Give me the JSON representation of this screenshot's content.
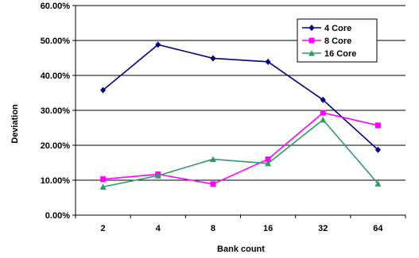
{
  "chart_data": {
    "type": "line",
    "title": "",
    "xlabel": "Bank count",
    "ylabel": "Deviation",
    "categories": [
      "2",
      "4",
      "8",
      "16",
      "32",
      "64"
    ],
    "ylim": [
      0,
      0.6
    ],
    "y_ticks": [
      "0.00%",
      "10.00%",
      "20.00%",
      "30.00%",
      "40.00%",
      "50.00%",
      "60.00%"
    ],
    "grid": "horizontal",
    "legend_position": "top-right",
    "series": [
      {
        "name": "4 Core",
        "color": "#000080",
        "marker": "diamond",
        "values": [
          0.358,
          0.488,
          0.449,
          0.439,
          0.33,
          0.187
        ]
      },
      {
        "name": "8 Core",
        "color": "#FF00FF",
        "marker": "square",
        "values": [
          0.103,
          0.117,
          0.089,
          0.16,
          0.293,
          0.257
        ]
      },
      {
        "name": "16 Core",
        "color": "#339966",
        "marker": "triangle",
        "values": [
          0.081,
          0.113,
          0.16,
          0.148,
          0.273,
          0.09
        ]
      }
    ]
  }
}
